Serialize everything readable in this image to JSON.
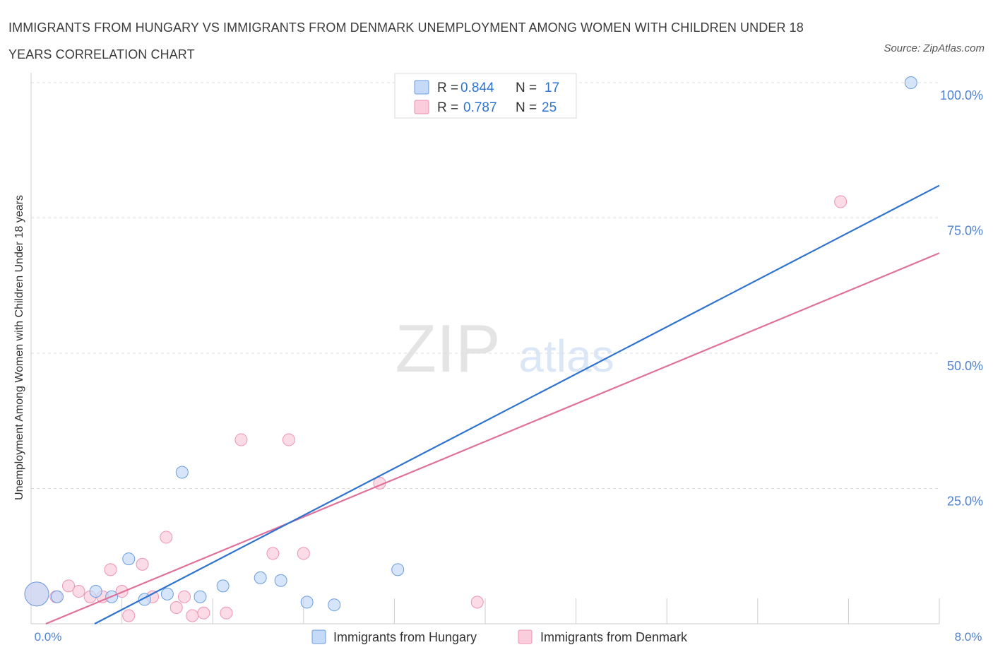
{
  "title": "IMMIGRANTS FROM HUNGARY VS IMMIGRANTS FROM DENMARK UNEMPLOYMENT AMONG WOMEN WITH CHILDREN UNDER 18 YEARS CORRELATION CHART",
  "source": "Source: ZipAtlas.com",
  "watermark": {
    "zip": "ZIP",
    "atlas": "atlas"
  },
  "colors": {
    "hungary": "#6a9ee0",
    "hungary_fill": "#c5daf6",
    "hungary_line": "#2f73d0",
    "denmark": "#ee93b1",
    "denmark_fill": "#f9cddb",
    "denmark_line": "#e0719a",
    "axis_text": "#4f83d1",
    "grid": "#dcdcdc"
  },
  "stats": [
    {
      "series": "Immigrants from Hungary",
      "r_label": "R =",
      "r_value": "0.844",
      "n_label": "N =",
      "n_value": "17"
    },
    {
      "series": "Immigrants from Denmark",
      "r_label": "R =",
      "r_value": "0.787",
      "n_label": "N =",
      "n_value": "25"
    }
  ],
  "chart_data": {
    "type": "scatter",
    "title": "IMMIGRANTS FROM HUNGARY VS IMMIGRANTS FROM DENMARK UNEMPLOYMENT AMONG WOMEN WITH CHILDREN UNDER 18 YEARS CORRELATION CHART",
    "xlabel": "",
    "ylabel": "Unemployment Among Women with Children Under 18 years",
    "xlim": [
      0,
      8
    ],
    "ylim": [
      0,
      100
    ],
    "x_tick_labels": [
      "0.0%",
      "8.0%"
    ],
    "y_ticks": [
      25,
      50,
      75,
      100
    ],
    "y_tick_labels": [
      "25.0%",
      "50.0%",
      "75.0%",
      "100.0%"
    ],
    "legend_position": "bottom-center",
    "series": [
      {
        "name": "Immigrants from Hungary",
        "color": "#6a9ee0",
        "r": 0.844,
        "n": 17,
        "trend": {
          "x": [
            0.56,
            8.0
          ],
          "y": [
            0,
            81
          ]
        },
        "points": [
          {
            "x": 0.05,
            "y": 5.5,
            "big": true
          },
          {
            "x": 0.23,
            "y": 5.0
          },
          {
            "x": 0.57,
            "y": 6.0
          },
          {
            "x": 0.71,
            "y": 5.0
          },
          {
            "x": 0.86,
            "y": 12.0
          },
          {
            "x": 1.0,
            "y": 4.5
          },
          {
            "x": 1.2,
            "y": 5.5
          },
          {
            "x": 1.33,
            "y": 28.0
          },
          {
            "x": 1.49,
            "y": 5.0
          },
          {
            "x": 1.69,
            "y": 7.0
          },
          {
            "x": 2.02,
            "y": 8.5
          },
          {
            "x": 2.2,
            "y": 8.0
          },
          {
            "x": 2.43,
            "y": 4.0
          },
          {
            "x": 2.67,
            "y": 3.5
          },
          {
            "x": 3.23,
            "y": 10.0
          },
          {
            "x": 7.75,
            "y": 100.0
          }
        ]
      },
      {
        "name": "Immigrants from Denmark",
        "color": "#ee93b1",
        "r": 0.787,
        "n": 25,
        "trend": {
          "x": [
            0.13,
            8.0
          ],
          "y": [
            0,
            68.5
          ]
        },
        "points": [
          {
            "x": 0.05,
            "y": 5.5,
            "big": true
          },
          {
            "x": 0.22,
            "y": 5.0
          },
          {
            "x": 0.33,
            "y": 7.0
          },
          {
            "x": 0.42,
            "y": 6.0
          },
          {
            "x": 0.52,
            "y": 5.0
          },
          {
            "x": 0.63,
            "y": 5.0
          },
          {
            "x": 0.7,
            "y": 10.0
          },
          {
            "x": 0.8,
            "y": 6.0
          },
          {
            "x": 0.86,
            "y": 1.5
          },
          {
            "x": 0.98,
            "y": 11.0
          },
          {
            "x": 1.07,
            "y": 5.0
          },
          {
            "x": 1.19,
            "y": 16.0
          },
          {
            "x": 1.28,
            "y": 3.0
          },
          {
            "x": 1.35,
            "y": 5.0
          },
          {
            "x": 1.42,
            "y": 1.5
          },
          {
            "x": 1.52,
            "y": 2.0
          },
          {
            "x": 1.72,
            "y": 2.0
          },
          {
            "x": 1.85,
            "y": 34.0
          },
          {
            "x": 2.13,
            "y": 13.0
          },
          {
            "x": 2.27,
            "y": 34.0
          },
          {
            "x": 2.4,
            "y": 13.0
          },
          {
            "x": 3.07,
            "y": 26.0
          },
          {
            "x": 3.93,
            "y": 4.0
          },
          {
            "x": 7.13,
            "y": 78.0
          }
        ]
      }
    ]
  }
}
